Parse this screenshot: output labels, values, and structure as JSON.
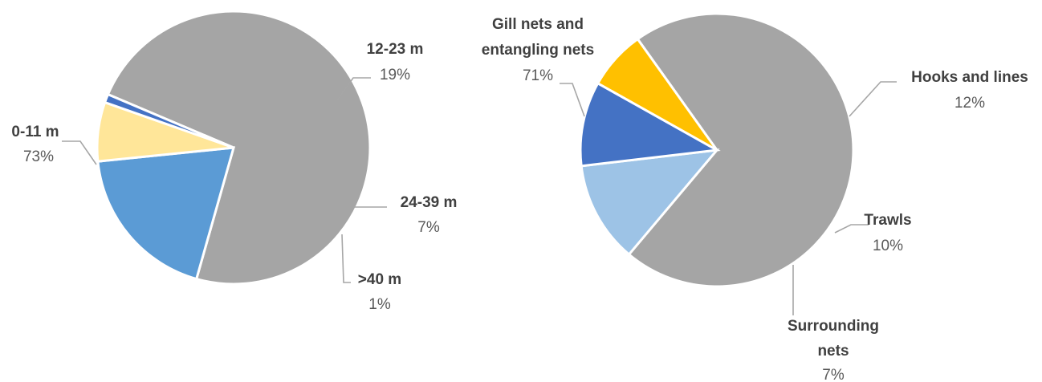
{
  "chart_data": [
    {
      "type": "pie",
      "slices": [
        {
          "label": "0-11 m",
          "value_label": "73%",
          "value": 73,
          "color": "#a5a5a5"
        },
        {
          "label": "12-23 m",
          "value_label": "19%",
          "value": 19,
          "color": "#5b9bd5"
        },
        {
          "label": "24-39 m",
          "value_label": "7%",
          "value": 7,
          "color": "#ffe699"
        },
        {
          "label": ">40 m",
          "value_label": "1%",
          "value": 1,
          "color": "#4472c4"
        }
      ]
    },
    {
      "type": "pie",
      "slices": [
        {
          "label": "Gill nets and entangling nets",
          "label_lines": [
            "Gill nets and",
            "entangling nets"
          ],
          "value_label": "71%",
          "value": 71,
          "color": "#a5a5a5"
        },
        {
          "label": "Hooks and lines",
          "label_lines": [
            "Hooks and lines"
          ],
          "value_label": "12%",
          "value": 12,
          "color": "#9dc3e6"
        },
        {
          "label": "Trawls",
          "label_lines": [
            "Trawls"
          ],
          "value_label": "10%",
          "value": 10,
          "color": "#4472c4"
        },
        {
          "label": "Surrounding nets",
          "label_lines": [
            "Surrounding",
            "nets"
          ],
          "value_label": "7%",
          "value": 7,
          "color": "#ffc000"
        }
      ]
    }
  ]
}
